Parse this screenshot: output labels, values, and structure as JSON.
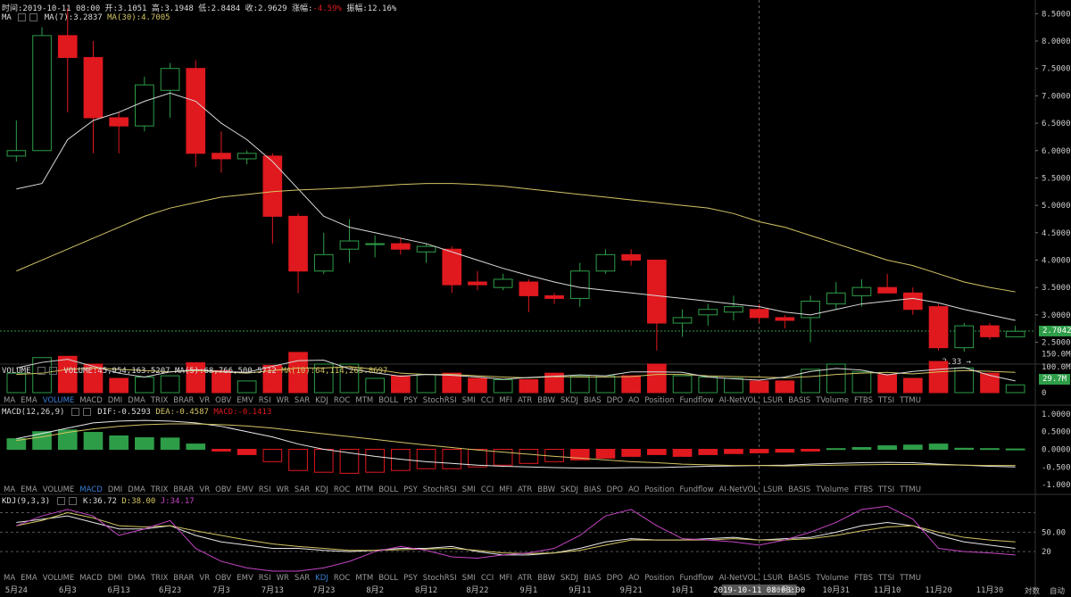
{
  "header": {
    "time": "时间:2019-10-11 08:00",
    "open": "开:3.1051",
    "high": "高:3.1948",
    "low": "低:2.8484",
    "close": "收:2.9629",
    "change_label": "涨幅:",
    "change_value": "-4.59%",
    "amp_label": "振幅:",
    "amp_value": "12.16%"
  },
  "ma_legend": {
    "name": "MA",
    "ma7": "MA(7):3.2837",
    "ma30": "MA(30):4.7005"
  },
  "volume_legend": {
    "name": "VOLUME",
    "vol": "VOLUME:45,954,163.5207",
    "ma5": "MA(5):68,766,500.5712",
    "ma10": "MA(10):64,114,265.8697"
  },
  "macd_legend": {
    "name": "MACD(12,26,9)",
    "dif": "DIF:-0.5293",
    "dea": "DEA:-0.4587",
    "macd": "MACD:-0.1413"
  },
  "kdj_legend": {
    "name": "KDJ(9,3,3)",
    "k": "K:36.72",
    "d": "D:38.00",
    "j": "J:34.17"
  },
  "indicators": [
    "MA",
    "EMA",
    "VOLUME",
    "MACD",
    "DMI",
    "DMA",
    "TRIX",
    "BRAR",
    "VR",
    "OBV",
    "EMV",
    "RSI",
    "WR",
    "SAR",
    "KDJ",
    "ROC",
    "MTM",
    "BOLL",
    "PSY",
    "StochRSI",
    "SMI",
    "CCI",
    "MFI",
    "ATR",
    "BBW",
    "SKDJ",
    "BIAS",
    "DPO",
    "AO",
    "Position",
    "Fundflow",
    "AI-NetVOL",
    "LSUR",
    "BASIS",
    "TVolume",
    "FTBS",
    "TTSI",
    "TTMU"
  ],
  "price_axis": [
    "8.5000",
    "8.0000",
    "7.5000",
    "7.0000",
    "6.5000",
    "6.0000",
    "5.5000",
    "5.0000",
    "4.5000",
    "4.0000",
    "3.5000",
    "3.0000",
    "2.5000"
  ],
  "current_price": "2.7042",
  "low_marker": "2.33",
  "volume_axis": [
    "150.0M",
    "100.0M",
    "50.0M",
    "0"
  ],
  "volume_tag": "29.7M",
  "macd_axis": [
    "1.0000",
    "0.5000",
    "0.0000",
    "-0.5000",
    "-1.0000"
  ],
  "kdj_axis": [
    "50.00",
    "20"
  ],
  "x_labels": [
    "5月24",
    "6月3",
    "6月13",
    "6月23",
    "7月3",
    "7月13",
    "7月23",
    "8月2",
    "8月12",
    "8月22",
    "9月1",
    "9月11",
    "9月21",
    "10月1",
    "2019-10-11 08:00:00",
    "10月21",
    "10月31",
    "11月10",
    "11月20",
    "11月30"
  ],
  "bottom_buttons": {
    "log": "対数",
    "auto": "自动"
  },
  "colors": {
    "up": "#2e9d48",
    "down": "#e0191e",
    "ma_white": "#d9d9d9",
    "ma_yellow": "#d2c463",
    "macd_dif": "#e8e8e8",
    "kdj_j": "#c445c4"
  },
  "chart_data": {
    "type": "candlestick",
    "candles": [
      {
        "o": 5.9,
        "h": 6.55,
        "l": 5.8,
        "c": 6.0
      },
      {
        "o": 6.0,
        "h": 8.25,
        "l": 6.0,
        "c": 8.1
      },
      {
        "o": 8.1,
        "h": 8.6,
        "l": 6.7,
        "c": 7.7
      },
      {
        "o": 7.7,
        "h": 8.0,
        "l": 5.95,
        "c": 6.6
      },
      {
        "o": 6.6,
        "h": 6.7,
        "l": 5.95,
        "c": 6.45
      },
      {
        "o": 6.45,
        "h": 7.35,
        "l": 6.35,
        "c": 7.2
      },
      {
        "o": 7.1,
        "h": 7.6,
        "l": 6.6,
        "c": 7.5
      },
      {
        "o": 7.5,
        "h": 7.65,
        "l": 5.7,
        "c": 5.95
      },
      {
        "o": 5.95,
        "h": 6.35,
        "l": 5.6,
        "c": 5.85
      },
      {
        "o": 5.85,
        "h": 6.0,
        "l": 5.75,
        "c": 5.95
      },
      {
        "o": 5.9,
        "h": 5.95,
        "l": 4.3,
        "c": 4.8
      },
      {
        "o": 4.8,
        "h": 4.85,
        "l": 3.4,
        "c": 3.8
      },
      {
        "o": 3.8,
        "h": 4.5,
        "l": 3.75,
        "c": 4.1
      },
      {
        "o": 4.2,
        "h": 4.75,
        "l": 3.95,
        "c": 4.35
      },
      {
        "o": 4.3,
        "h": 4.45,
        "l": 4.05,
        "c": 4.3
      },
      {
        "o": 4.3,
        "h": 4.4,
        "l": 4.1,
        "c": 4.2
      },
      {
        "o": 4.15,
        "h": 4.3,
        "l": 3.95,
        "c": 4.25
      },
      {
        "o": 4.2,
        "h": 4.25,
        "l": 3.4,
        "c": 3.55
      },
      {
        "o": 3.6,
        "h": 3.8,
        "l": 3.45,
        "c": 3.55
      },
      {
        "o": 3.5,
        "h": 3.75,
        "l": 3.45,
        "c": 3.65
      },
      {
        "o": 3.6,
        "h": 3.65,
        "l": 3.05,
        "c": 3.35
      },
      {
        "o": 3.35,
        "h": 3.4,
        "l": 3.2,
        "c": 3.3
      },
      {
        "o": 3.3,
        "h": 3.95,
        "l": 3.15,
        "c": 3.8
      },
      {
        "o": 3.8,
        "h": 4.2,
        "l": 3.75,
        "c": 4.1
      },
      {
        "o": 4.1,
        "h": 4.2,
        "l": 3.9,
        "c": 4.0
      },
      {
        "o": 4.0,
        "h": 4.0,
        "l": 2.35,
        "c": 2.85
      },
      {
        "o": 2.85,
        "h": 3.1,
        "l": 2.6,
        "c": 2.95
      },
      {
        "o": 3.0,
        "h": 3.2,
        "l": 2.8,
        "c": 3.1
      },
      {
        "o": 3.05,
        "h": 3.35,
        "l": 2.9,
        "c": 3.15
      },
      {
        "o": 3.1,
        "h": 3.2,
        "l": 2.85,
        "c": 2.95
      },
      {
        "o": 2.95,
        "h": 3.0,
        "l": 2.75,
        "c": 2.9
      },
      {
        "o": 2.95,
        "h": 3.35,
        "l": 2.5,
        "c": 3.25
      },
      {
        "o": 3.2,
        "h": 3.6,
        "l": 3.1,
        "c": 3.4
      },
      {
        "o": 3.35,
        "h": 3.65,
        "l": 3.15,
        "c": 3.5
      },
      {
        "o": 3.5,
        "h": 3.75,
        "l": 3.4,
        "c": 3.4
      },
      {
        "o": 3.4,
        "h": 3.5,
        "l": 3.0,
        "c": 3.1
      },
      {
        "o": 3.15,
        "h": 3.2,
        "l": 2.35,
        "c": 2.4
      },
      {
        "o": 2.4,
        "h": 2.85,
        "l": 2.33,
        "c": 2.8
      },
      {
        "o": 2.8,
        "h": 2.85,
        "l": 2.55,
        "c": 2.6
      },
      {
        "o": 2.6,
        "h": 2.8,
        "l": 2.6,
        "c": 2.7
      }
    ],
    "ma7": [
      5.3,
      5.4,
      6.2,
      6.55,
      6.7,
      6.9,
      7.05,
      6.9,
      6.5,
      6.2,
      5.8,
      5.3,
      4.8,
      4.6,
      4.5,
      4.4,
      4.3,
      4.15,
      4.0,
      3.85,
      3.72,
      3.6,
      3.5,
      3.45,
      3.4,
      3.35,
      3.3,
      3.25,
      3.2,
      3.15,
      3.05,
      3.0,
      3.1,
      3.2,
      3.25,
      3.3,
      3.22,
      3.1,
      3.0,
      2.9
    ],
    "ma30": [
      3.8,
      4.0,
      4.2,
      4.4,
      4.6,
      4.8,
      4.95,
      5.05,
      5.15,
      5.2,
      5.25,
      5.28,
      5.3,
      5.32,
      5.35,
      5.38,
      5.4,
      5.4,
      5.38,
      5.35,
      5.3,
      5.25,
      5.2,
      5.15,
      5.1,
      5.05,
      5.0,
      4.95,
      4.85,
      4.7,
      4.6,
      4.45,
      4.3,
      4.15,
      4.0,
      3.9,
      3.75,
      3.6,
      3.5,
      3.42
    ],
    "volume": [
      75,
      135,
      140,
      110,
      55,
      60,
      65,
      115,
      85,
      45,
      105,
      155,
      110,
      110,
      55,
      65,
      70,
      75,
      55,
      50,
      50,
      75,
      65,
      65,
      65,
      110,
      65,
      60,
      55,
      45,
      45,
      90,
      110,
      80,
      70,
      55,
      120,
      95,
      75,
      30
    ],
    "vol_ma": [
      70,
      75,
      90,
      95,
      90,
      85,
      80,
      85,
      80,
      75,
      85,
      95,
      95,
      100,
      90,
      75,
      70,
      70,
      65,
      60,
      57,
      62,
      60,
      60,
      62,
      70,
      70,
      65,
      62,
      60,
      57,
      62,
      70,
      75,
      78,
      72,
      80,
      85,
      82,
      78
    ],
    "macd_hist": [
      0.3,
      0.5,
      0.55,
      0.48,
      0.38,
      0.33,
      0.32,
      0.15,
      -0.05,
      -0.15,
      -0.35,
      -0.6,
      -0.65,
      -0.68,
      -0.65,
      -0.6,
      -0.55,
      -0.55,
      -0.5,
      -0.45,
      -0.4,
      -0.35,
      -0.3,
      -0.25,
      -0.2,
      -0.15,
      -0.2,
      -0.15,
      -0.12,
      -0.1,
      -0.08,
      -0.05,
      0.02,
      0.05,
      0.1,
      0.12,
      0.15,
      0.03,
      0.02,
      0.01
    ],
    "dif": [
      0.3,
      0.45,
      0.6,
      0.75,
      0.8,
      0.82,
      0.8,
      0.75,
      0.65,
      0.5,
      0.35,
      0.15,
      0.0,
      -0.1,
      -0.2,
      -0.28,
      -0.35,
      -0.4,
      -0.45,
      -0.48,
      -0.5,
      -0.52,
      -0.53,
      -0.53,
      -0.52,
      -0.52,
      -0.5,
      -0.48,
      -0.47,
      -0.46,
      -0.45,
      -0.42,
      -0.4,
      -0.38,
      -0.37,
      -0.38,
      -0.42,
      -0.45,
      -0.48,
      -0.5
    ],
    "dea": [
      0.25,
      0.35,
      0.48,
      0.58,
      0.65,
      0.7,
      0.72,
      0.72,
      0.7,
      0.66,
      0.6,
      0.52,
      0.44,
      0.36,
      0.28,
      0.2,
      0.12,
      0.05,
      -0.02,
      -0.08,
      -0.14,
      -0.2,
      -0.25,
      -0.3,
      -0.35,
      -0.38,
      -0.42,
      -0.44,
      -0.46,
      -0.46,
      -0.47,
      -0.46,
      -0.45,
      -0.44,
      -0.43,
      -0.43,
      -0.44,
      -0.45,
      -0.46,
      -0.46
    ],
    "k": [
      65,
      70,
      75,
      65,
      55,
      55,
      60,
      45,
      35,
      30,
      25,
      25,
      22,
      20,
      22,
      25,
      25,
      28,
      20,
      15,
      15,
      18,
      25,
      35,
      40,
      38,
      38,
      40,
      42,
      38,
      40,
      42,
      50,
      60,
      65,
      60,
      45,
      35,
      30,
      25
    ],
    "d": [
      60,
      68,
      80,
      72,
      60,
      58,
      60,
      52,
      45,
      38,
      32,
      28,
      25,
      22,
      22,
      23,
      24,
      25,
      22,
      18,
      17,
      18,
      22,
      30,
      38,
      38,
      38,
      38,
      40,
      38,
      38,
      40,
      45,
      52,
      58,
      60,
      50,
      42,
      38,
      35
    ],
    "j": [
      60,
      75,
      85,
      75,
      45,
      55,
      68,
      25,
      5,
      -5,
      -10,
      -10,
      -5,
      5,
      20,
      28,
      22,
      12,
      10,
      15,
      18,
      25,
      45,
      75,
      85,
      60,
      40,
      38,
      35,
      30,
      38,
      50,
      65,
      85,
      90,
      70,
      25,
      20,
      18,
      15
    ]
  }
}
